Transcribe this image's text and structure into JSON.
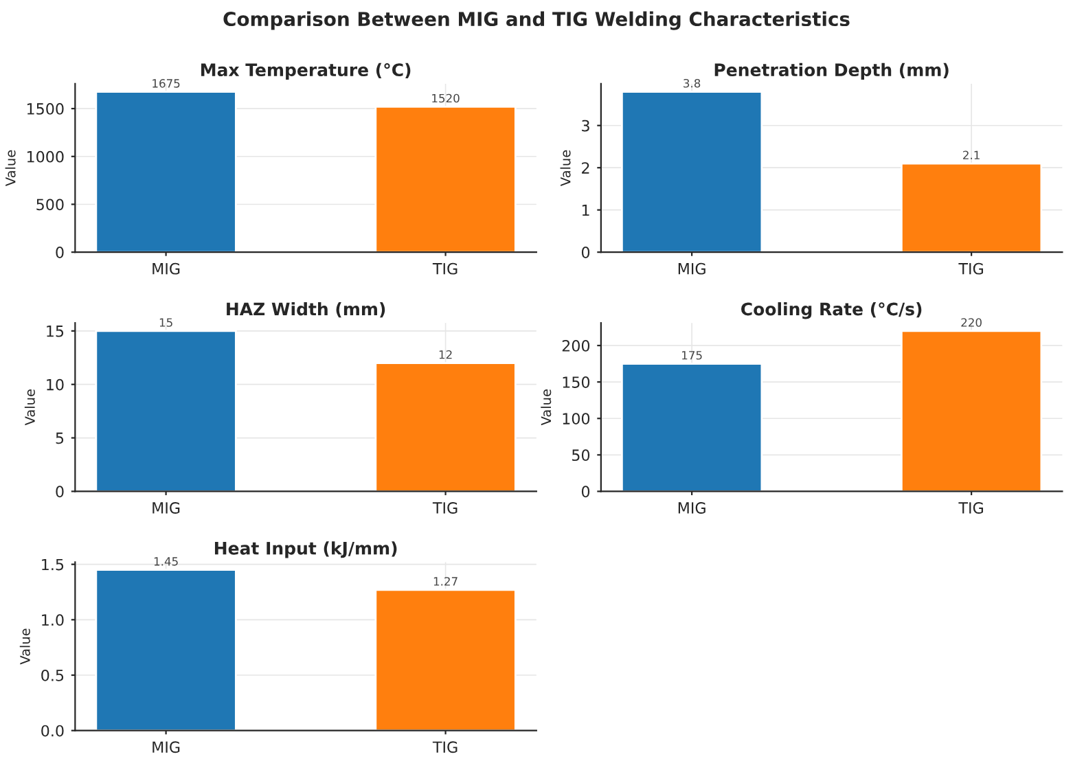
{
  "chart_data": [
    {
      "type": "bar",
      "title": "Max Temperature (°C)",
      "subtitle": "Comparison Between MIG and TIG Welding Characteristics",
      "ylabel": "Value",
      "categories": [
        "MIG",
        "TIG"
      ],
      "values": [
        1675,
        1520
      ],
      "colors": [
        "#1f77b4",
        "#ff7f0e"
      ],
      "ylim": [
        0,
        1760
      ],
      "yticks": [
        0,
        500,
        1000,
        1500
      ],
      "grid": true,
      "data_labels": true
    },
    {
      "type": "bar",
      "title": "Penetration Depth (mm)",
      "ylabel": "Value",
      "categories": [
        "MIG",
        "TIG"
      ],
      "values": [
        3.8,
        2.1
      ],
      "colors": [
        "#1f77b4",
        "#ff7f0e"
      ],
      "ylim": [
        0,
        3.99
      ],
      "yticks": [
        0,
        1,
        2,
        3
      ],
      "grid": true,
      "data_labels": true
    },
    {
      "type": "bar",
      "title": "HAZ Width (mm)",
      "ylabel": "Value",
      "categories": [
        "MIG",
        "TIG"
      ],
      "values": [
        15,
        12
      ],
      "colors": [
        "#1f77b4",
        "#ff7f0e"
      ],
      "ylim": [
        0,
        15.75
      ],
      "yticks": [
        0,
        5,
        10,
        15
      ],
      "grid": true,
      "data_labels": true
    },
    {
      "type": "bar",
      "title": "Cooling Rate (°C/s)",
      "ylabel": "Value",
      "categories": [
        "MIG",
        "TIG"
      ],
      "values": [
        175,
        220
      ],
      "colors": [
        "#1f77b4",
        "#ff7f0e"
      ],
      "ylim": [
        0,
        231
      ],
      "yticks": [
        0,
        50,
        100,
        150,
        200
      ],
      "grid": true,
      "data_labels": true
    },
    {
      "type": "bar",
      "title": "Heat Input (kJ/mm)",
      "ylabel": "Value",
      "categories": [
        "MIG",
        "TIG"
      ],
      "values": [
        1.45,
        1.27
      ],
      "colors": [
        "#1f77b4",
        "#ff7f0e"
      ],
      "ylim": [
        0,
        1.52
      ],
      "yticks": [
        {
          "value": 0,
          "label": "0.0"
        },
        {
          "value": 0.5,
          "label": "0.5"
        },
        {
          "value": 1.0,
          "label": "1.0"
        },
        {
          "value": 1.5,
          "label": "1.5"
        }
      ],
      "grid": true,
      "data_labels": true
    }
  ]
}
